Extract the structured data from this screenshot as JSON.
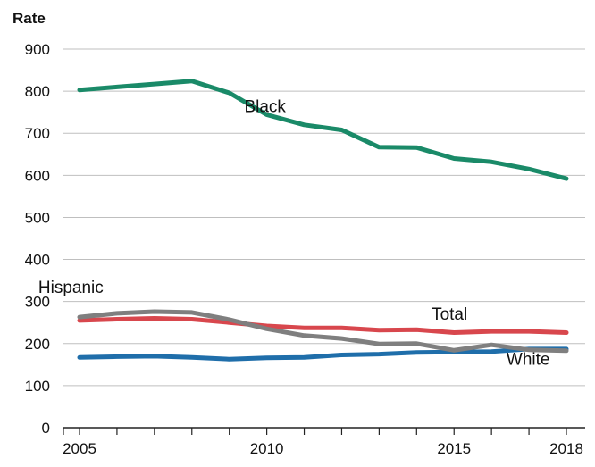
{
  "chart_data": {
    "type": "line",
    "title": "",
    "xlabel": "",
    "ylabel": "Rate",
    "xlim": [
      2005,
      2018
    ],
    "ylim": [
      0,
      900
    ],
    "x_ticks": [
      2005,
      2010,
      2015,
      2018
    ],
    "y_ticks": [
      0,
      100,
      200,
      300,
      400,
      500,
      600,
      700,
      800,
      900
    ],
    "grid": true,
    "legend": "none",
    "x": [
      2005,
      2006,
      2007,
      2008,
      2009,
      2010,
      2011,
      2012,
      2013,
      2014,
      2015,
      2016,
      2017,
      2018
    ],
    "series": [
      {
        "name": "Black",
        "color": "#1a8a68",
        "values": [
          803,
          810,
          817,
          824,
          796,
          744,
          720,
          708,
          667,
          666,
          640,
          632,
          615,
          592
        ]
      },
      {
        "name": "Hispanic",
        "color": "#7f7f7f",
        "values": [
          263,
          272,
          276,
          274,
          257,
          235,
          219,
          212,
          199,
          200,
          184,
          197,
          185,
          183
        ]
      },
      {
        "name": "Total",
        "color": "#d8474d",
        "values": [
          255,
          258,
          260,
          258,
          250,
          242,
          237,
          237,
          232,
          233,
          226,
          229,
          229,
          226
        ]
      },
      {
        "name": "White",
        "color": "#1f6eaa",
        "values": [
          167,
          169,
          170,
          167,
          163,
          166,
          167,
          173,
          175,
          179,
          180,
          181,
          187,
          187
        ]
      }
    ]
  },
  "annotations": [
    {
      "text": "Black",
      "x": 2009.4,
      "y": 750
    },
    {
      "text": "Hispanic",
      "x": 2003.9,
      "y": 320
    },
    {
      "text": "Total",
      "x": 2014.4,
      "y": 257
    },
    {
      "text": "White",
      "x": 2016.4,
      "y": 150
    }
  ]
}
